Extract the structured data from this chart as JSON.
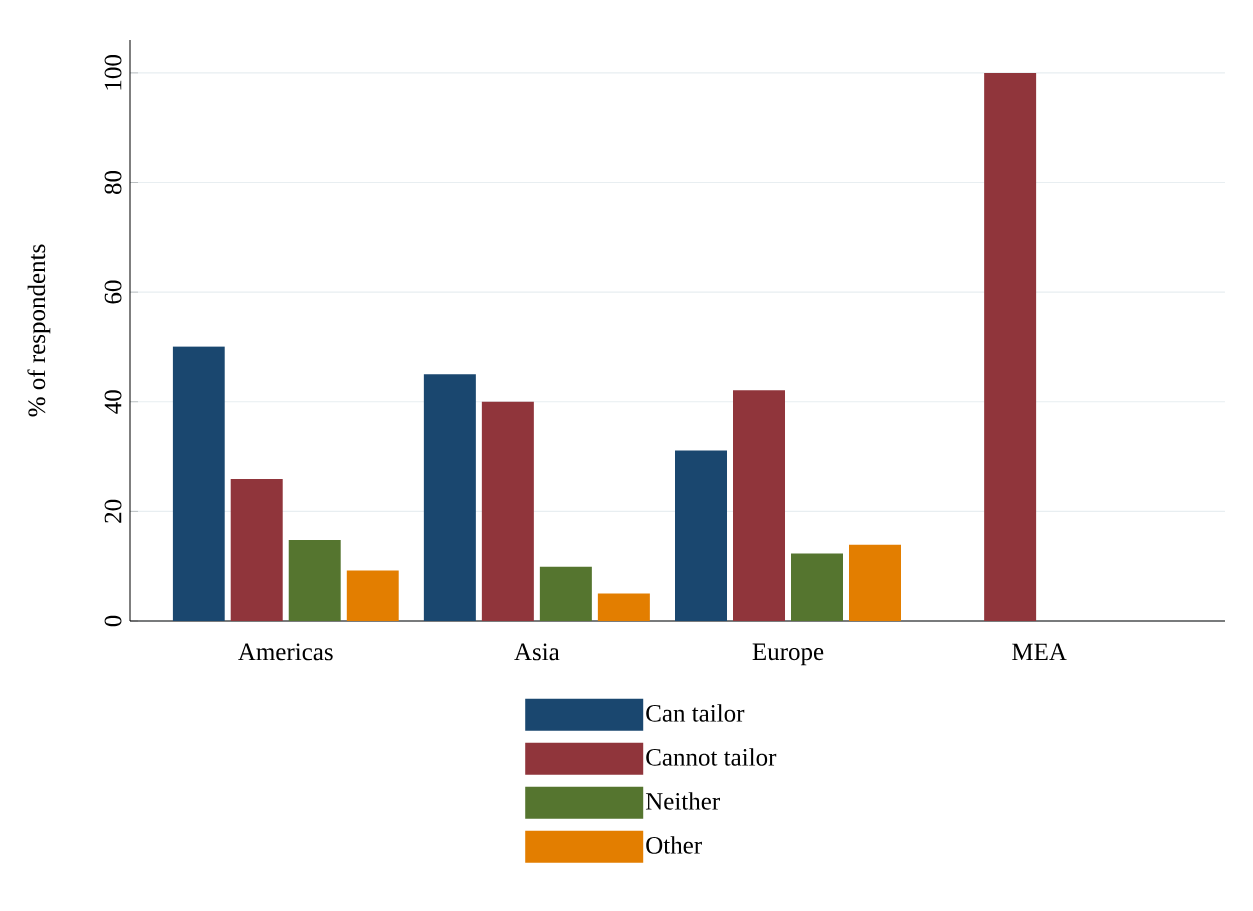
{
  "chart_data": {
    "type": "bar",
    "ylabel": "% of respondents",
    "categories": [
      "Americas",
      "Asia",
      "Europe",
      "MEA"
    ],
    "series": [
      {
        "name": "Can tailor",
        "color": "#1a476f",
        "values": [
          50.1,
          45.0,
          31.1,
          null
        ]
      },
      {
        "name": "Cannot tailor",
        "color": "#90353b",
        "values": [
          25.9,
          40.0,
          42.1,
          100
        ]
      },
      {
        "name": "Neither",
        "color": "#55752f",
        "values": [
          14.8,
          9.9,
          12.3,
          null
        ]
      },
      {
        "name": "Other",
        "color": "#e37e00",
        "values": [
          9.2,
          5.0,
          13.9,
          null
        ]
      }
    ],
    "ylim": [
      0,
      106
    ],
    "yticks": [
      0,
      20,
      40,
      60,
      80,
      100
    ],
    "grid": "y",
    "legend": "bottom"
  }
}
